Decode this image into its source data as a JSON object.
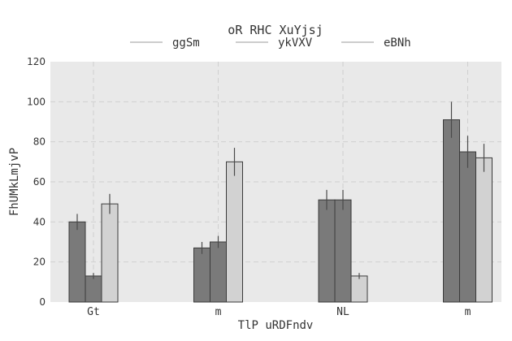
{
  "chart_data": {
    "type": "bar",
    "title": "oR RHC XuYjsj",
    "xlabel": "TlP uRDFndv",
    "ylabel": "FhUMkLmjvP",
    "categories": [
      "Gt",
      "m",
      "NL",
      "m"
    ],
    "ylim": [
      0,
      120
    ],
    "yticks": [
      0,
      20,
      40,
      60,
      80,
      100,
      120
    ],
    "grid": true,
    "legend_position": "top-center",
    "series": [
      {
        "name": "ggSm",
        "values": [
          40,
          27,
          51,
          91
        ],
        "errors": [
          4,
          3,
          5,
          9
        ],
        "color": "#7a7a7a"
      },
      {
        "name": "ykVXV",
        "values": [
          13,
          30,
          51,
          75
        ],
        "errors": [
          1.5,
          3,
          5,
          8
        ],
        "color": "#7a7a7a"
      },
      {
        "name": "eBNh",
        "values": [
          49,
          70,
          13,
          72
        ],
        "errors": [
          5,
          7,
          1.5,
          7
        ],
        "color": "#d2d2d2"
      }
    ]
  }
}
